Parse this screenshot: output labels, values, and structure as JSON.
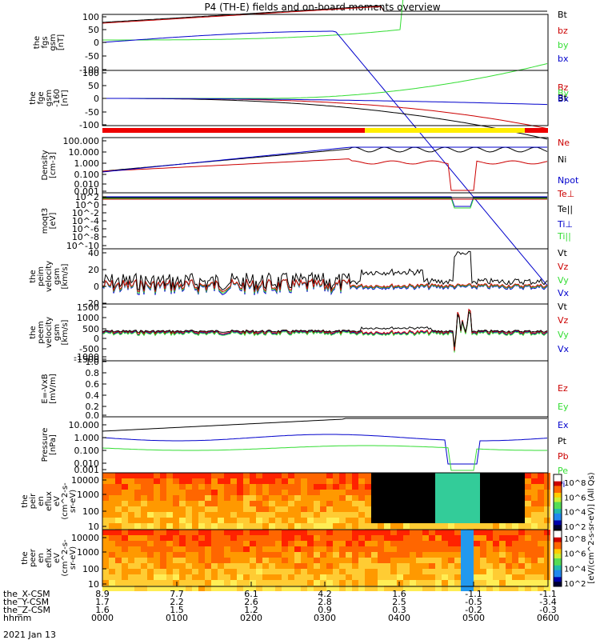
{
  "title": "P4 (TH-E) fields and on-board moments overview",
  "date_label": "2021 Jan 13",
  "chart_data": [
    {
      "type": "line",
      "panel": "fgs_gsm",
      "ylabel": [
        "the",
        "fgs",
        "gsm",
        "[nT]"
      ],
      "yticks": [
        100,
        50,
        0,
        -50,
        -100
      ],
      "ylim": [
        -100,
        100
      ],
      "legend": [
        {
          "label": "Bt",
          "color": "#000000"
        },
        {
          "label": "bz",
          "color": "#cc0000"
        },
        {
          "label": "by",
          "color": "#33dd33"
        },
        {
          "label": "bx",
          "color": "#0000cc"
        }
      ]
    },
    {
      "type": "line",
      "panel": "fge_gsm",
      "ylabel": [
        "the",
        "fge",
        "gsm",
        "-160",
        "[nT]"
      ],
      "yticks": [
        100,
        50,
        0,
        -50,
        -100
      ],
      "ylim": [
        -130,
        100
      ],
      "legend": [
        {
          "label": "Bz",
          "color": "#cc0000"
        },
        {
          "label": "By",
          "color": "#33dd33"
        },
        {
          "label": "Bt",
          "color": "#000000"
        },
        {
          "label": "Bx",
          "color": "#0000cc"
        }
      ]
    },
    {
      "type": "line",
      "panel": "density",
      "log": true,
      "ylabel": [
        "Density",
        "[cm-3]"
      ],
      "yticks": [
        "100.000",
        "10.000",
        "1.000",
        "0.100",
        "0.010",
        "0.001"
      ],
      "legend": [
        {
          "label": "Ne",
          "color": "#cc0000"
        },
        {
          "label": "Ni",
          "color": "#000000"
        },
        {
          "label": "Npot",
          "color": "#0000cc"
        }
      ]
    },
    {
      "type": "line",
      "panel": "temperature",
      "log": true,
      "ylabel": [
        "moqt3",
        "[eV]"
      ],
      "yticks": [
        "10^2",
        "10^0",
        "10^-2",
        "10^-4",
        "10^-6",
        "10^-8",
        "10^-10"
      ],
      "legend": [
        {
          "label": "Te⊥",
          "color": "#cc0000"
        },
        {
          "label": "Te||",
          "color": "#000000"
        },
        {
          "label": "Ti⊥",
          "color": "#0000cc"
        },
        {
          "label": "Ti||",
          "color": "#33dd33"
        }
      ]
    },
    {
      "type": "line",
      "panel": "peim_velocity",
      "ylabel": [
        "the",
        "peim",
        "velocity",
        "gsm",
        "[km/s]"
      ],
      "yticks": [
        40,
        20,
        0,
        -20
      ],
      "ylim": [
        -20,
        40
      ],
      "legend": [
        {
          "label": "Vt",
          "color": "#000000"
        },
        {
          "label": "Vz",
          "color": "#cc0000"
        },
        {
          "label": "Vy",
          "color": "#33dd33"
        },
        {
          "label": "Vx",
          "color": "#0000cc"
        }
      ]
    },
    {
      "type": "line",
      "panel": "peem_velocity",
      "ylabel": [
        "the",
        "peem",
        "velocity",
        "gsm",
        "[km/s]"
      ],
      "yticks": [
        1500,
        1000,
        500,
        0,
        -500,
        -1000,
        -1500
      ],
      "ylim": [
        -1500,
        1500
      ],
      "legend": [
        {
          "label": "Vt",
          "color": "#000000"
        },
        {
          "label": "Vz",
          "color": "#cc0000"
        },
        {
          "label": "Vy",
          "color": "#33dd33"
        },
        {
          "label": "Vx",
          "color": "#0000cc"
        }
      ]
    },
    {
      "type": "line",
      "panel": "efield",
      "ylabel": [
        "E=-VxB",
        "[mV/m]"
      ],
      "yticks": [
        "1.0",
        "0.8",
        "0.6",
        "0.4",
        "0.2",
        "0.0"
      ],
      "ylim": [
        0,
        1
      ],
      "legend": [
        {
          "label": "Ez",
          "color": "#cc0000"
        },
        {
          "label": "Ey",
          "color": "#33dd33"
        },
        {
          "label": "Ex",
          "color": "#0000cc"
        }
      ]
    },
    {
      "type": "line",
      "panel": "pressure",
      "log": true,
      "ylabel": [
        "Pressure",
        "[nPa]"
      ],
      "yticks": [
        "10.000",
        "1.000",
        "0.100",
        "0.010",
        "0.001"
      ],
      "legend": [
        {
          "label": "Pt",
          "color": "#000000"
        },
        {
          "label": "Pb",
          "color": "#cc0000"
        },
        {
          "label": "Pe",
          "color": "#33dd33"
        },
        {
          "label": "Pi",
          "color": "#0000cc"
        }
      ]
    },
    {
      "type": "heatmap",
      "panel": "peir_spectrogram",
      "log": true,
      "ylabel": [
        "the",
        "peir",
        "en",
        "eflux",
        "eV",
        "(cm^2-s-",
        "sr-eV)"
      ],
      "yticks": [
        10000,
        1000,
        100,
        10
      ]
    },
    {
      "type": "heatmap",
      "panel": "peer_spectrogram",
      "log": true,
      "ylabel": [
        "the",
        "peer",
        "en",
        "eflux",
        "eV",
        "(cm^2-s-",
        "sr-eV)"
      ],
      "yticks": [
        10000,
        1000,
        100,
        10
      ]
    }
  ],
  "colorbar": {
    "label": "[eV/(cm^2-s-sr-eV)] (All Qs)",
    "ticks_top": [
      "10^8",
      "10^6",
      "10^4",
      "10^2"
    ],
    "ticks_bottom": [
      "10^8",
      "10^6",
      "10^4",
      "10^2"
    ]
  },
  "xaxis": {
    "rows": [
      {
        "label": "the_X-CSM",
        "values": [
          "8.9",
          "7.7",
          "6.1",
          "4.2",
          "1.6",
          "-1.1",
          "-1.1"
        ]
      },
      {
        "label": "the_Y-CSM",
        "values": [
          "1.7",
          "2.2",
          "2.6",
          "2.8",
          "2.5",
          "-0.5",
          "-3.4"
        ]
      },
      {
        "label": "the_Z-CSM",
        "values": [
          "1.6",
          "1.5",
          "1.2",
          "0.9",
          "0.3",
          "-0.2",
          "-0.3"
        ]
      },
      {
        "label": "hhmm",
        "values": [
          "0000",
          "0100",
          "0200",
          "0300",
          "0400",
          "0500",
          "0600"
        ]
      }
    ]
  },
  "colors": {
    "black": "#000000",
    "red": "#cc0000",
    "green": "#33dd33",
    "blue": "#0000cc",
    "yellow": "#ffee00"
  }
}
